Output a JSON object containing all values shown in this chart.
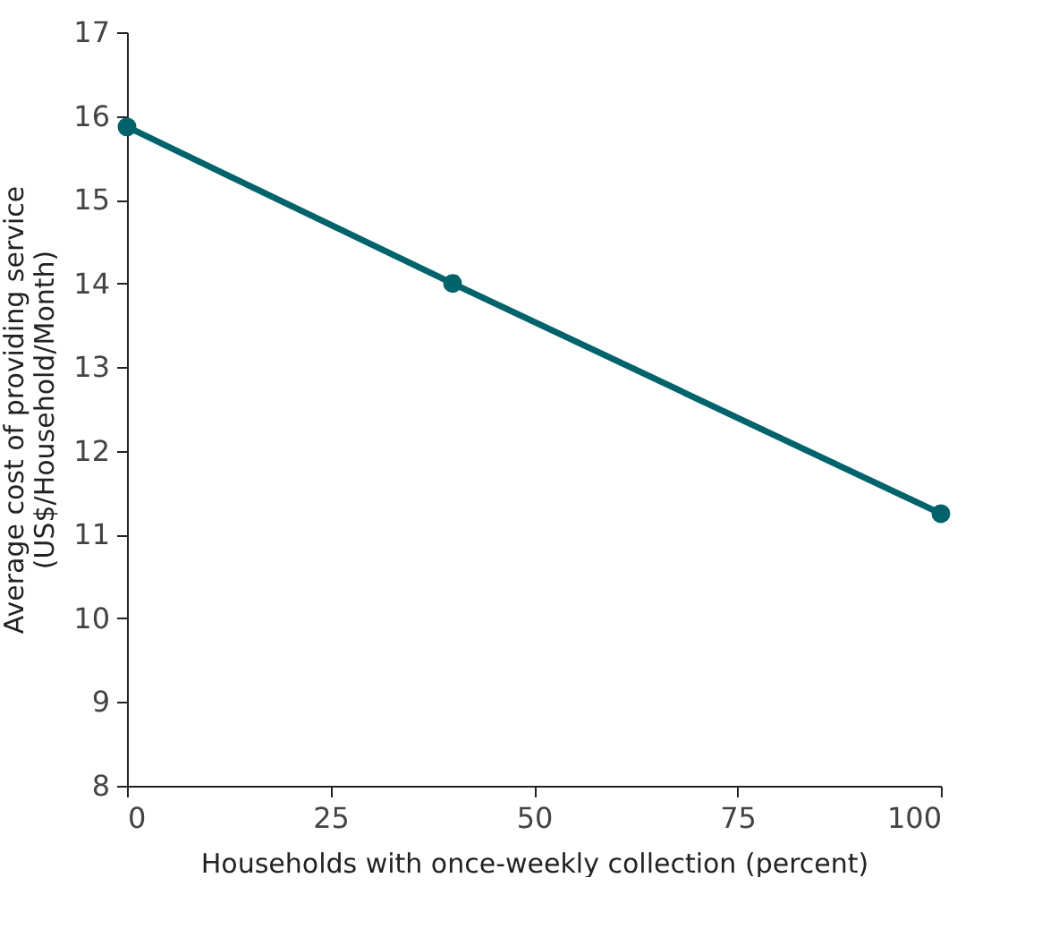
{
  "chart_data": {
    "type": "line",
    "xlabel": "Households with once-weekly collection (percent)",
    "ylabel": "Average cost of providing service\n(US$/Household/Month)",
    "x": [
      0,
      40,
      100
    ],
    "series": [
      {
        "color": "#00636b",
        "values": [
          15.87,
          14.0,
          11.25
        ]
      }
    ],
    "xlim": [
      0,
      100
    ],
    "xticks": [
      0,
      25,
      50,
      75,
      100
    ],
    "ylim": [
      8,
      17
    ],
    "yticks": [
      8,
      9,
      10,
      11,
      12,
      13,
      14,
      15,
      16,
      17
    ],
    "grid": false,
    "legend": false,
    "marker": "circle",
    "line_style": "solid"
  }
}
